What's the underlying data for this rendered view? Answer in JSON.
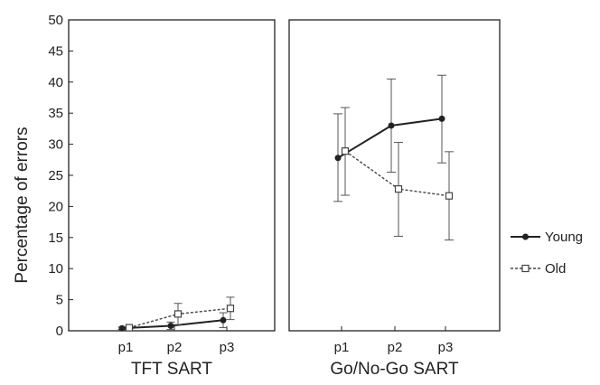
{
  "chart_data": [
    {
      "type": "line",
      "title": "",
      "xlabel": "TFT SART",
      "ylabel": "Percentage of errors",
      "categories": [
        "p1",
        "p2",
        "p3"
      ],
      "ylim": [
        0,
        50
      ],
      "yticks": [
        0,
        5,
        10,
        15,
        20,
        25,
        30,
        35,
        40,
        45,
        50
      ],
      "grid": false,
      "series": [
        {
          "name": "Young",
          "values": [
            0.4,
            0.8,
            1.7
          ],
          "err_low": [
            0.2,
            0.2,
            0.5
          ],
          "err_high": [
            0.6,
            1.4,
            2.9
          ]
        },
        {
          "name": "Old",
          "values": [
            0.5,
            2.7,
            3.6
          ],
          "err_low": [
            0.3,
            1.0,
            1.8
          ],
          "err_high": [
            0.7,
            4.4,
            5.4
          ]
        }
      ]
    },
    {
      "type": "line",
      "title": "",
      "xlabel": "Go/No-Go SART",
      "ylabel": "",
      "categories": [
        "p1",
        "p2",
        "p3"
      ],
      "ylim": [
        0,
        50
      ],
      "grid": false,
      "series": [
        {
          "name": "Young",
          "values": [
            27.8,
            33.0,
            34.1
          ],
          "err_low": [
            20.8,
            25.5,
            27.0
          ],
          "err_high": [
            34.9,
            40.5,
            41.1
          ]
        },
        {
          "name": "Old",
          "values": [
            28.9,
            22.8,
            21.7
          ],
          "err_low": [
            21.8,
            15.2,
            14.6
          ],
          "err_high": [
            35.9,
            30.3,
            28.8
          ]
        }
      ]
    }
  ],
  "legend": {
    "placement": "right",
    "entries": [
      {
        "name": "Young",
        "marker": "filled-circle",
        "line": "solid"
      },
      {
        "name": "Old",
        "marker": "open-square",
        "line": "dotted"
      }
    ]
  },
  "colors": {
    "young": "#222222",
    "old": "#444444",
    "background": "#ffffff"
  }
}
